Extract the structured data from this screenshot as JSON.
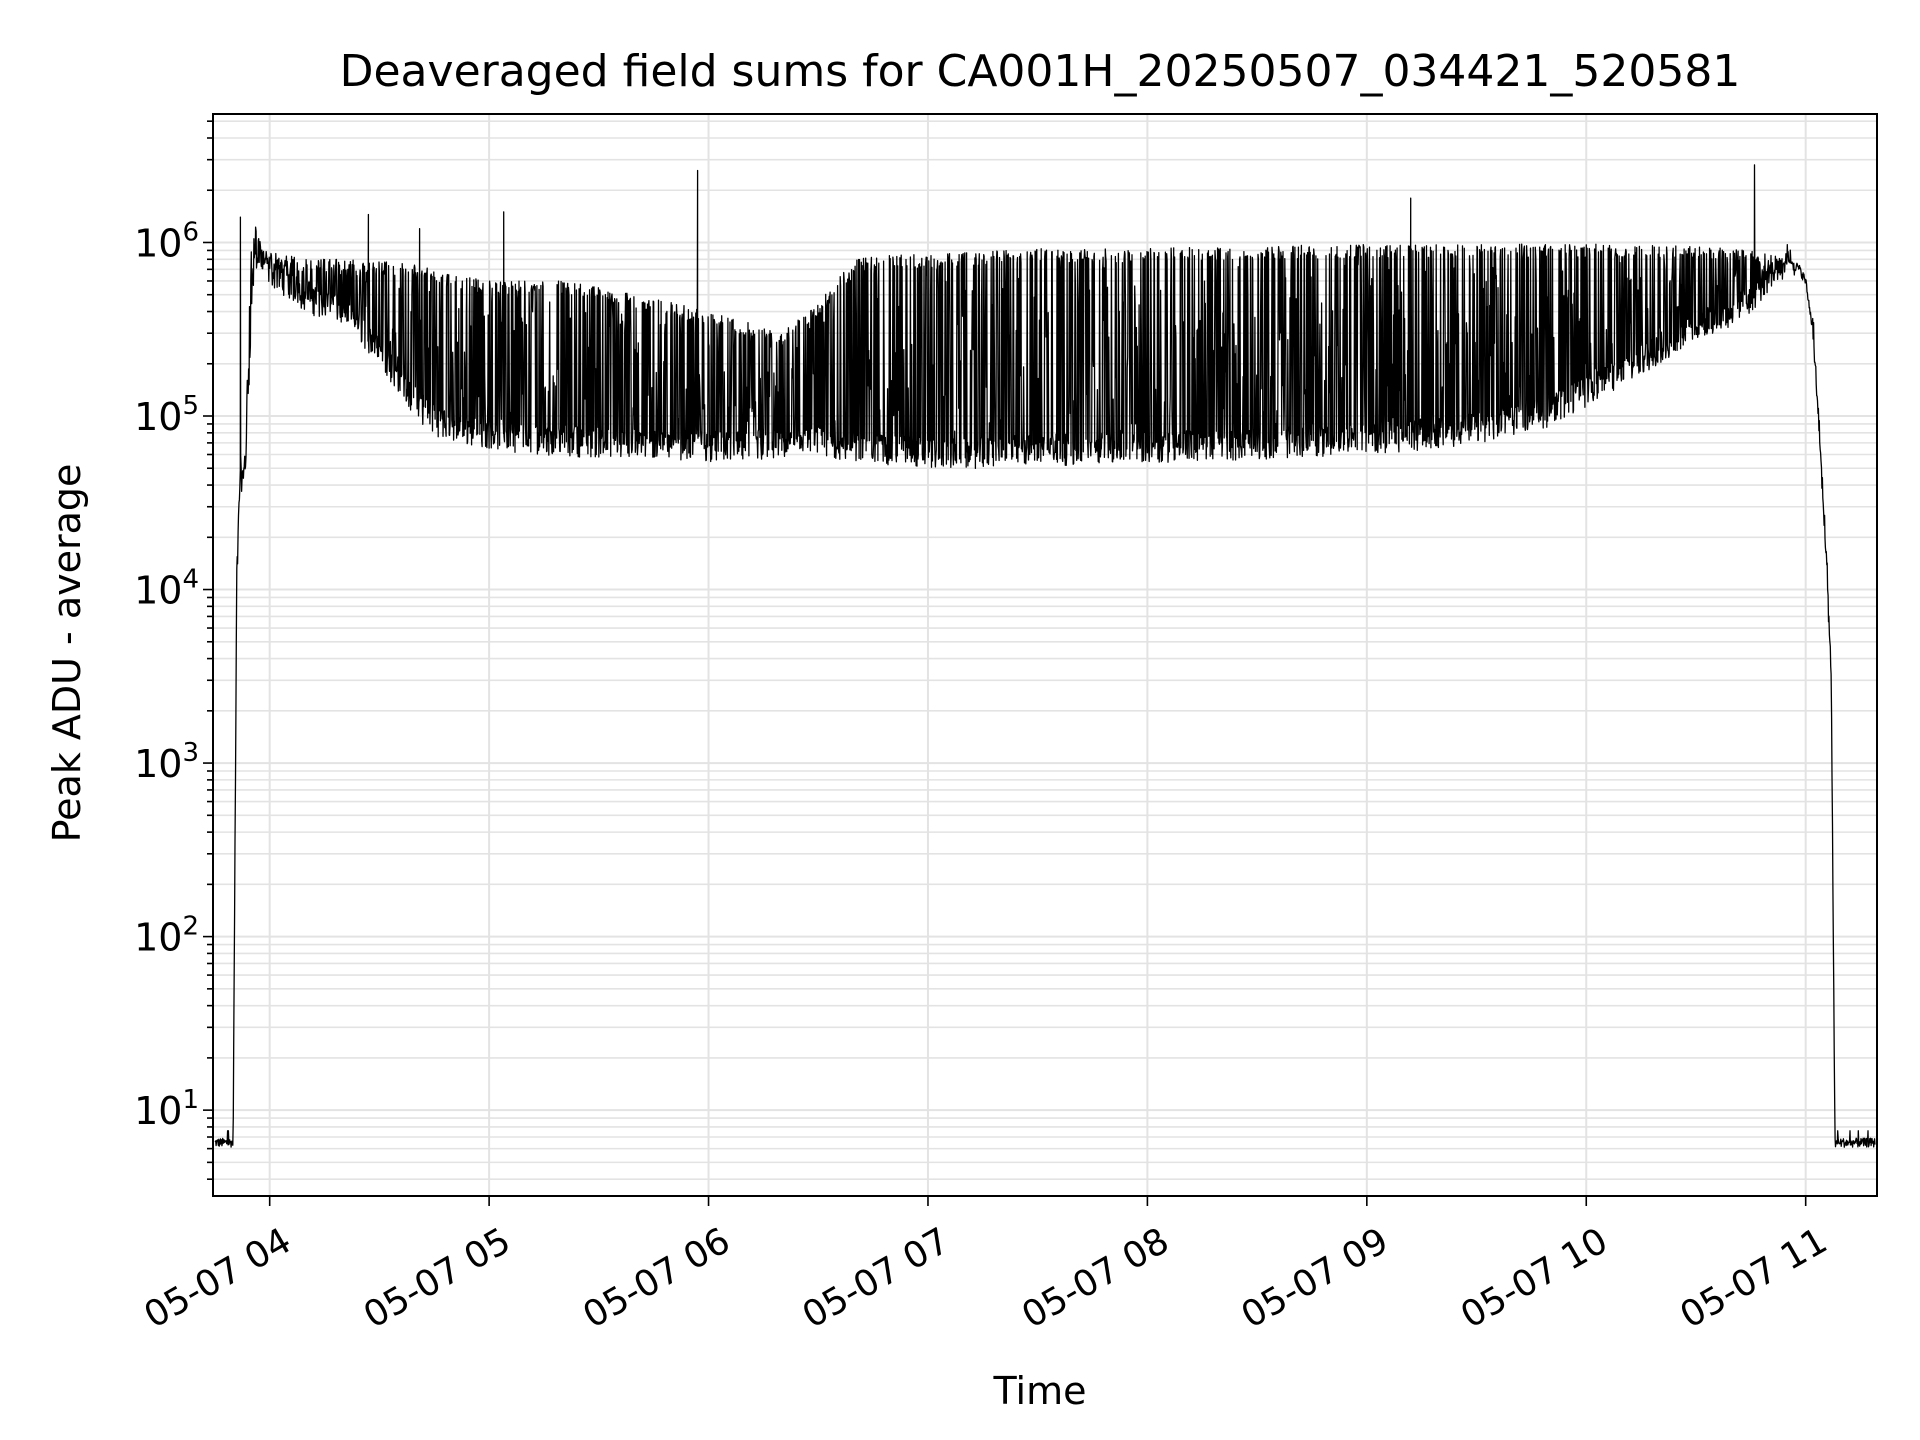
{
  "chart_data": {
    "type": "line",
    "title": "Deaveraged field sums for CA001H_20250507_034421_520581",
    "xlabel": "Time",
    "ylabel": "Peak ADU - average",
    "yscale": "log",
    "ylim": [
      3.2,
      5500000
    ],
    "xlim": [
      "2025-05-07 03:44:30",
      "2025-05-07 11:19:30"
    ],
    "grid": true,
    "grid_minor": true,
    "line_color": "#000000",
    "grid_color": "#e3e3e3",
    "x_ticks": [
      {
        "t": "2025-05-07 04:00",
        "label": "05-07 04"
      },
      {
        "t": "2025-05-07 05:00",
        "label": "05-07 05"
      },
      {
        "t": "2025-05-07 06:00",
        "label": "05-07 06"
      },
      {
        "t": "2025-05-07 07:00",
        "label": "05-07 07"
      },
      {
        "t": "2025-05-07 08:00",
        "label": "05-07 08"
      },
      {
        "t": "2025-05-07 09:00",
        "label": "05-07 09"
      },
      {
        "t": "2025-05-07 10:00",
        "label": "05-07 10"
      },
      {
        "t": "2025-05-07 11:00",
        "label": "05-07 11"
      }
    ],
    "y_ticks": [
      {
        "v": 10,
        "base": "10",
        "exp": "1"
      },
      {
        "v": 100,
        "base": "10",
        "exp": "2"
      },
      {
        "v": 1000,
        "base": "10",
        "exp": "3"
      },
      {
        "v": 10000,
        "base": "10",
        "exp": "4"
      },
      {
        "v": 100000,
        "base": "10",
        "exp": "5"
      },
      {
        "v": 1000000,
        "base": "10",
        "exp": "6"
      }
    ],
    "series": [
      {
        "x": [
          "2025-05-07 03:45",
          "2025-05-07 03:49",
          "2025-05-07 03:50",
          "2025-05-07 03:51",
          "2025-05-07 03:52",
          "2025-05-07 03:53",
          "2025-05-07 03:55",
          "2025-05-07 03:56",
          "2025-05-07 03:58",
          "2025-05-07 04:00",
          "2025-05-07 04:05",
          "2025-05-07 04:10",
          "2025-05-07 04:15",
          "2025-05-07 04:20",
          "2025-05-07 04:25",
          "2025-05-07 04:30",
          "2025-05-07 04:35",
          "2025-05-07 04:40",
          "2025-05-07 04:45",
          "2025-05-07 04:50",
          "2025-05-07 05:00",
          "2025-05-07 05:10",
          "2025-05-07 05:20",
          "2025-05-07 05:30",
          "2025-05-07 05:40",
          "2025-05-07 05:50",
          "2025-05-07 06:00",
          "2025-05-07 06:10",
          "2025-05-07 06:20",
          "2025-05-07 06:30",
          "2025-05-07 06:40",
          "2025-05-07 06:50",
          "2025-05-07 07:00",
          "2025-05-07 07:10",
          "2025-05-07 07:20",
          "2025-05-07 07:30",
          "2025-05-07 07:40",
          "2025-05-07 07:50",
          "2025-05-07 08:00",
          "2025-05-07 08:10",
          "2025-05-07 08:20",
          "2025-05-07 08:30",
          "2025-05-07 08:40",
          "2025-05-07 08:50",
          "2025-05-07 09:00",
          "2025-05-07 09:10",
          "2025-05-07 09:20",
          "2025-05-07 09:30",
          "2025-05-07 09:40",
          "2025-05-07 09:50",
          "2025-05-07 10:00",
          "2025-05-07 10:10",
          "2025-05-07 10:20",
          "2025-05-07 10:30",
          "2025-05-07 10:40",
          "2025-05-07 10:45",
          "2025-05-07 10:50",
          "2025-05-07 10:55",
          "2025-05-07 10:58",
          "2025-05-07 11:00",
          "2025-05-07 11:02",
          "2025-05-07 11:04",
          "2025-05-07 11:06",
          "2025-05-07 11:07",
          "2025-05-07 11:08",
          "2025-05-07 11:10",
          "2025-05-07 11:15",
          "2025-05-07 11:19"
        ],
        "y": [
          6.5,
          6.5,
          6.5,
          10000,
          50000,
          30000,
          400000,
          800000,
          700000,
          650000,
          550000,
          450000,
          420000,
          380000,
          300000,
          220000,
          160000,
          110000,
          90000,
          80000,
          75000,
          70000,
          68000,
          66000,
          64000,
          65000,
          63000,
          62000,
          64000,
          66000,
          62000,
          60000,
          58000,
          57000,
          59000,
          60000,
          60000,
          62000,
          62000,
          63000,
          64000,
          65000,
          66000,
          68000,
          70000,
          72000,
          75000,
          80000,
          90000,
          100000,
          130000,
          170000,
          230000,
          300000,
          380000,
          450000,
          600000,
          750000,
          720000,
          600000,
          300000,
          60000,
          10000,
          3000,
          6.5,
          6.5,
          6.5,
          6.5
        ],
        "y_high": [
          6.5,
          6.5,
          6.5,
          15000,
          60000,
          50000,
          1000000,
          1400000,
          900000,
          900000,
          850000,
          800000,
          800000,
          800000,
          800000,
          780000,
          760000,
          750000,
          700000,
          650000,
          600000,
          600000,
          600000,
          550000,
          500000,
          450000,
          400000,
          350000,
          300000,
          450000,
          800000,
          850000,
          850000,
          880000,
          900000,
          920000,
          920000,
          920000,
          920000,
          940000,
          940000,
          950000,
          960000,
          970000,
          980000,
          980000,
          980000,
          980000,
          980000,
          980000,
          980000,
          970000,
          960000,
          950000,
          920000,
          900000,
          850000,
          800000,
          750000,
          620000,
          320000,
          70000,
          12000,
          3000,
          6.5,
          6.5,
          6.5,
          6.5
        ],
        "spikes": [
          {
            "t": "2025-05-07 03:52",
            "y": 1400000
          },
          {
            "t": "2025-05-07 04:27",
            "y": 1450000
          },
          {
            "t": "2025-05-07 04:41",
            "y": 1200000
          },
          {
            "t": "2025-05-07 05:04",
            "y": 1500000
          },
          {
            "t": "2025-05-07 05:57",
            "y": 2600000
          },
          {
            "t": "2025-05-07 09:12",
            "y": 1800000
          },
          {
            "t": "2025-05-07 10:46",
            "y": 2800000
          }
        ]
      }
    ]
  }
}
